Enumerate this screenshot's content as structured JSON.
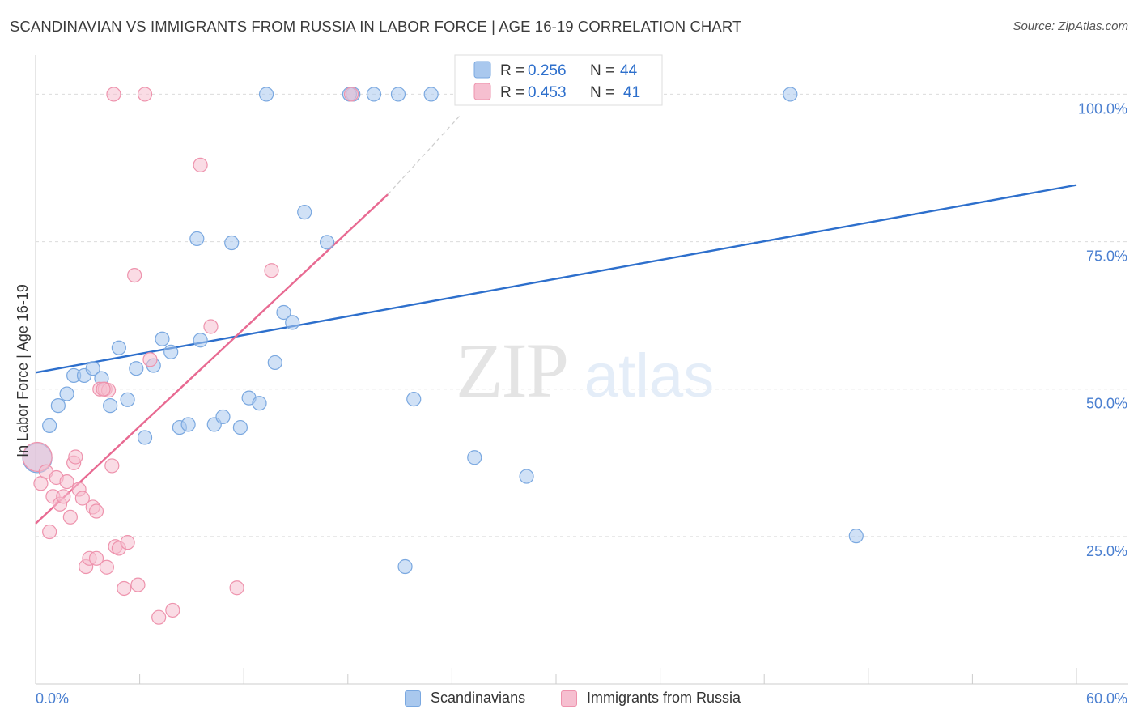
{
  "header": {
    "title": "SCANDINAVIAN VS IMMIGRANTS FROM RUSSIA IN LABOR FORCE | AGE 16-19 CORRELATION CHART",
    "source": "Source: ZipAtlas.com"
  },
  "watermark": {
    "zip": "ZIP",
    "atlas": "atlas"
  },
  "colors": {
    "blue_fill": "#a9c8ee",
    "blue_stroke": "#7aa8e0",
    "blue_line": "#2d6fcc",
    "pink_fill": "#f6bfd0",
    "pink_stroke": "#ee93ad",
    "pink_line": "#e86a92",
    "axis_text": "#4a7fd0",
    "grid": "#dcdcdc"
  },
  "stats": [
    {
      "r_label": "R =",
      "r_value": "0.256",
      "n_label": "N =",
      "n_value": "44"
    },
    {
      "r_label": "R =",
      "r_value": "0.453",
      "n_label": "N =",
      "n_value": "41"
    }
  ],
  "chart_data": {
    "type": "scatter",
    "title": "SCANDINAVIAN VS IMMIGRANTS FROM RUSSIA IN LABOR FORCE | AGE 16-19 CORRELATION CHART",
    "xlabel": "",
    "ylabel": "In Labor Force | Age 16-19",
    "xlim": [
      0,
      60
    ],
    "ylim": [
      0,
      105
    ],
    "x_tick_labels": [
      "0.0%",
      "60.0%"
    ],
    "y_ticks": [
      25,
      50,
      75,
      100
    ],
    "y_tick_labels": [
      "25.0%",
      "50.0%",
      "75.0%",
      "100.0%"
    ],
    "legend": [
      "Scandinavians",
      "Immigrants from Russia"
    ],
    "series": [
      {
        "name": "Scandinavians",
        "trend": {
          "x": [
            0,
            60
          ],
          "y": [
            52.8,
            84.6
          ]
        },
        "points": [
          {
            "x": 0.1,
            "y": 38.3,
            "big": true
          },
          {
            "x": 0.8,
            "y": 43.8
          },
          {
            "x": 1.3,
            "y": 47.2
          },
          {
            "x": 1.8,
            "y": 49.2
          },
          {
            "x": 2.2,
            "y": 52.3
          },
          {
            "x": 2.8,
            "y": 52.3
          },
          {
            "x": 3.3,
            "y": 53.5
          },
          {
            "x": 3.8,
            "y": 51.8
          },
          {
            "x": 4.3,
            "y": 47.2
          },
          {
            "x": 4.8,
            "y": 57.0
          },
          {
            "x": 5.3,
            "y": 48.2
          },
          {
            "x": 5.8,
            "y": 53.5
          },
          {
            "x": 6.3,
            "y": 41.8
          },
          {
            "x": 6.8,
            "y": 54.0
          },
          {
            "x": 7.3,
            "y": 58.5
          },
          {
            "x": 7.8,
            "y": 56.3
          },
          {
            "x": 8.3,
            "y": 43.5
          },
          {
            "x": 8.8,
            "y": 44.0
          },
          {
            "x": 9.3,
            "y": 75.5
          },
          {
            "x": 9.5,
            "y": 58.3
          },
          {
            "x": 10.3,
            "y": 44.0
          },
          {
            "x": 10.8,
            "y": 45.3
          },
          {
            "x": 11.3,
            "y": 74.8
          },
          {
            "x": 11.8,
            "y": 43.5
          },
          {
            "x": 12.3,
            "y": 48.5
          },
          {
            "x": 12.9,
            "y": 47.6
          },
          {
            "x": 13.8,
            "y": 54.5
          },
          {
            "x": 14.3,
            "y": 63.0
          },
          {
            "x": 14.8,
            "y": 61.3
          },
          {
            "x": 15.5,
            "y": 80.0
          },
          {
            "x": 16.8,
            "y": 74.9
          },
          {
            "x": 21.8,
            "y": 48.3
          },
          {
            "x": 25.3,
            "y": 38.4
          },
          {
            "x": 28.3,
            "y": 35.2
          },
          {
            "x": 47.3,
            "y": 25.1
          },
          {
            "x": 21.3,
            "y": 19.9
          },
          {
            "x": 13.3,
            "y": 100
          },
          {
            "x": 18.3,
            "y": 100
          },
          {
            "x": 19.5,
            "y": 100
          },
          {
            "x": 20.9,
            "y": 100
          },
          {
            "x": 22.8,
            "y": 100
          },
          {
            "x": 24.8,
            "y": 100
          },
          {
            "x": 43.5,
            "y": 100
          },
          {
            "x": 18.1,
            "y": 100
          }
        ]
      },
      {
        "name": "Immigrants from Russia",
        "trend": {
          "x": [
            0,
            20.3
          ],
          "y": [
            27.2,
            83.0
          ]
        },
        "trend_ext": {
          "x": [
            20.3,
            24.5
          ],
          "y": [
            83.0,
            96.5
          ]
        },
        "points": [
          {
            "x": 0.1,
            "y": 38.5,
            "big": true
          },
          {
            "x": 0.3,
            "y": 34.0
          },
          {
            "x": 0.6,
            "y": 36.0
          },
          {
            "x": 0.8,
            "y": 25.8
          },
          {
            "x": 1.0,
            "y": 31.8
          },
          {
            "x": 1.2,
            "y": 35.0
          },
          {
            "x": 1.4,
            "y": 30.5
          },
          {
            "x": 1.6,
            "y": 31.8
          },
          {
            "x": 1.8,
            "y": 34.3
          },
          {
            "x": 2.0,
            "y": 28.3
          },
          {
            "x": 2.2,
            "y": 37.5
          },
          {
            "x": 2.3,
            "y": 38.5
          },
          {
            "x": 2.5,
            "y": 33.0
          },
          {
            "x": 2.7,
            "y": 31.5
          },
          {
            "x": 2.9,
            "y": 19.9
          },
          {
            "x": 3.1,
            "y": 21.3
          },
          {
            "x": 3.3,
            "y": 30.0
          },
          {
            "x": 3.5,
            "y": 21.3
          },
          {
            "x": 3.7,
            "y": 50.0
          },
          {
            "x": 3.5,
            "y": 29.3
          },
          {
            "x": 4.0,
            "y": 50.0
          },
          {
            "x": 4.2,
            "y": 49.8
          },
          {
            "x": 4.4,
            "y": 37.0
          },
          {
            "x": 4.6,
            "y": 23.3
          },
          {
            "x": 4.8,
            "y": 23.0
          },
          {
            "x": 5.1,
            "y": 16.2
          },
          {
            "x": 5.3,
            "y": 24.0
          },
          {
            "x": 5.7,
            "y": 69.3
          },
          {
            "x": 5.9,
            "y": 16.8
          },
          {
            "x": 6.6,
            "y": 55.0
          },
          {
            "x": 7.1,
            "y": 11.3
          },
          {
            "x": 7.9,
            "y": 12.5
          },
          {
            "x": 9.5,
            "y": 88.0
          },
          {
            "x": 10.1,
            "y": 60.6
          },
          {
            "x": 11.6,
            "y": 16.3
          },
          {
            "x": 13.6,
            "y": 70.1
          },
          {
            "x": 4.1,
            "y": 19.8
          },
          {
            "x": 4.5,
            "y": 100
          },
          {
            "x": 6.3,
            "y": 100
          },
          {
            "x": 18.2,
            "y": 100
          },
          {
            "x": 3.9,
            "y": 50.0
          }
        ]
      }
    ]
  }
}
